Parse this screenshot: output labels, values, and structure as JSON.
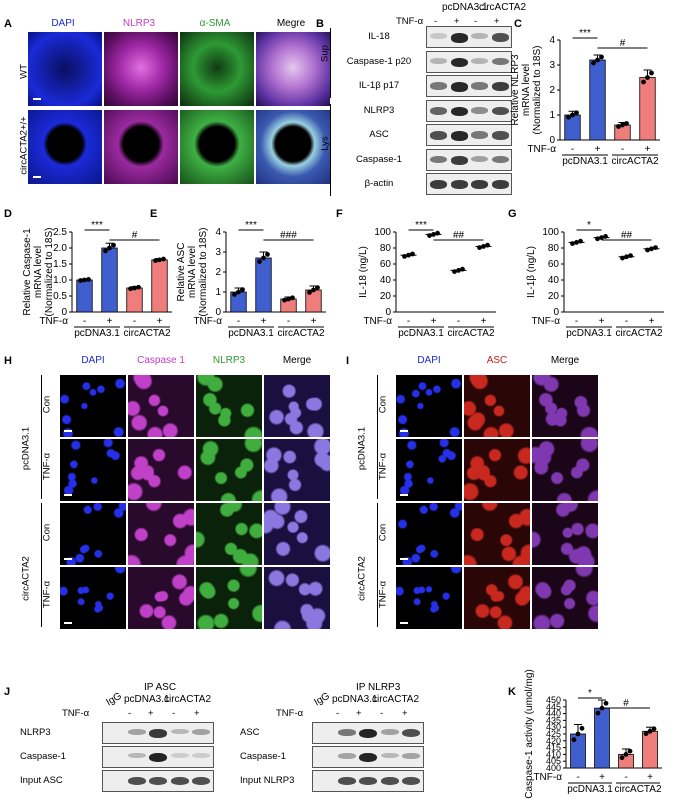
{
  "panels": {
    "A": {
      "label": "A",
      "headers": [
        "DAPI",
        "NLRP3",
        "α-SMA",
        "Megre"
      ],
      "rows": [
        "WT",
        "circACTA2+/+"
      ]
    },
    "B": {
      "label": "B",
      "groups": [
        "pcDNA3.1",
        "circACTA2"
      ],
      "treatment": "TNF-α",
      "signs": [
        "-",
        "+",
        "-",
        "+"
      ],
      "sup_label": "Sup",
      "lys_label": "Lys",
      "rows": [
        "IL-18",
        "Caspase-1 p20",
        "IL-1β p17",
        "NLRP3",
        "ASC",
        "Caspase-1",
        "β-actin"
      ]
    },
    "H": {
      "label": "H",
      "headers": [
        "DAPI",
        "Caspase 1",
        "NLRP3",
        "Merge"
      ],
      "groups": [
        "pcDNA3.1",
        "circACTA2"
      ],
      "rows": [
        "Con",
        "TNF-α"
      ]
    },
    "I": {
      "label": "I",
      "headers": [
        "DAPI",
        "ASC",
        "Merge"
      ],
      "groups": [
        "pcDNA3.1",
        "circACTA2"
      ],
      "rows": [
        "Con",
        "TNF-α"
      ]
    },
    "J": {
      "label": "J",
      "left": {
        "ip": "IP ASC",
        "igg": "IgG",
        "groups": [
          "pcDNA3.1",
          "circACTA2"
        ],
        "treatment": "TNF-α",
        "signs": [
          "-",
          "+",
          "-",
          "+"
        ],
        "rows": [
          "NLRP3",
          "Caspase-1",
          "Input ASC"
        ]
      },
      "right": {
        "ip": "IP NLRP3",
        "igg": "IgG",
        "groups": [
          "pcDNA3.1",
          "circACTA2"
        ],
        "treatment": "TNF-α",
        "signs": [
          "-",
          "+",
          "-",
          "+"
        ],
        "rows": [
          "ASC",
          "Caspase-1",
          "Input NLRP3"
        ]
      }
    }
  },
  "chart_data": [
    {
      "panel": "C",
      "type": "bar",
      "ylabel": "Relative NLRP3 mRNA level (Normalized to 18S)",
      "ylim": [
        0,
        4
      ],
      "yticks": [
        "0",
        "1",
        "2",
        "3",
        "4"
      ],
      "groups": [
        "pcDNA3.1",
        "circACTA2"
      ],
      "treatment": "TNF-α",
      "signs": [
        "-",
        "+",
        "-",
        "+"
      ],
      "values": [
        1.0,
        3.2,
        0.6,
        2.5
      ],
      "errors": [
        0.15,
        0.2,
        0.1,
        0.3
      ],
      "colors": [
        "#3f5fcf",
        "#3f5fcf",
        "#ef7d7b",
        "#ef7d7b"
      ],
      "sig": [
        {
          "from": 0,
          "to": 1,
          "text": "***"
        },
        {
          "from": 1,
          "to": 3,
          "text": "#"
        }
      ]
    },
    {
      "panel": "D",
      "type": "bar",
      "ylabel": "Relative Caspase-1 mRNA level (Normalized to 18S)",
      "ylim": [
        0,
        2.5
      ],
      "yticks": [
        "0",
        "0.5",
        "1.0",
        "1.5",
        "2.0",
        "2.5"
      ],
      "groups": [
        "pcDNA3.1",
        "circACTA2"
      ],
      "treatment": "TNF-α",
      "signs": [
        "-",
        "+",
        "-",
        "+"
      ],
      "values": [
        1.0,
        2.0,
        0.75,
        1.63
      ],
      "errors": [
        0.03,
        0.15,
        0.04,
        0.04
      ],
      "colors": [
        "#3f5fcf",
        "#3f5fcf",
        "#ef7d7b",
        "#ef7d7b"
      ],
      "sig": [
        {
          "from": 0,
          "to": 1,
          "text": "***"
        },
        {
          "from": 1,
          "to": 3,
          "text": "#"
        }
      ]
    },
    {
      "panel": "E",
      "type": "bar",
      "ylabel": "Relative ASC mRNA level (Normalized to 18S)",
      "ylim": [
        0,
        4
      ],
      "yticks": [
        "0",
        "1",
        "2",
        "3",
        "4"
      ],
      "groups": [
        "pcDNA3.1",
        "circACTA2"
      ],
      "treatment": "TNF-α",
      "signs": [
        "-",
        "+",
        "-",
        "+"
      ],
      "values": [
        1.0,
        2.7,
        0.65,
        1.1
      ],
      "errors": [
        0.2,
        0.3,
        0.1,
        0.2
      ],
      "colors": [
        "#3f5fcf",
        "#3f5fcf",
        "#ef7d7b",
        "#ef7d7b"
      ],
      "sig": [
        {
          "from": 0,
          "to": 1,
          "text": "***"
        },
        {
          "from": 1,
          "to": 3,
          "text": "###"
        }
      ]
    },
    {
      "panel": "F",
      "type": "scatter",
      "ylabel": "IL-18 (ng/L)",
      "ylim": [
        0,
        100
      ],
      "yticks": [
        "0",
        "20",
        "40",
        "60",
        "80",
        "100"
      ],
      "groups": [
        "pcDNA3.1",
        "circACTA2"
      ],
      "treatment": "TNF-α",
      "signs": [
        "-",
        "+",
        "-",
        "+"
      ],
      "values": [
        71,
        97,
        52,
        82
      ],
      "colors": [
        "#000",
        "#000",
        "#000",
        "#000"
      ],
      "sig": [
        {
          "from": 0,
          "to": 1,
          "text": "***"
        },
        {
          "from": 1,
          "to": 3,
          "text": "##"
        }
      ]
    },
    {
      "panel": "G",
      "type": "scatter",
      "ylabel": "IL-1β (ng/L)",
      "ylim": [
        0,
        100
      ],
      "yticks": [
        "0",
        "20",
        "40",
        "60",
        "80",
        "100"
      ],
      "groups": [
        "pcDNA3.1",
        "circACTA2"
      ],
      "treatment": "TNF-α",
      "signs": [
        "-",
        "+",
        "-",
        "+"
      ],
      "values": [
        87,
        93,
        69,
        79
      ],
      "colors": [
        "#000",
        "#000",
        "#000",
        "#000"
      ],
      "sig": [
        {
          "from": 0,
          "to": 1,
          "text": "*"
        },
        {
          "from": 1,
          "to": 3,
          "text": "##"
        }
      ]
    },
    {
      "panel": "K",
      "type": "bar",
      "ylabel": "Caspase-1 activity (umol/mg)",
      "ylim": [
        400,
        450
      ],
      "yticks": [
        "400",
        "405",
        "410",
        "415",
        "420",
        "425",
        "430",
        "435",
        "440",
        "445",
        "450"
      ],
      "groups": [
        "pcDNA3.1",
        "circACTA2"
      ],
      "treatment": "TNF-α",
      "signs": [
        "-",
        "+",
        "-",
        "+"
      ],
      "values": [
        425,
        444,
        410,
        427
      ],
      "errors": [
        7,
        6,
        4,
        3
      ],
      "colors": [
        "#3f5fcf",
        "#3f5fcf",
        "#ef7d7b",
        "#ef7d7b"
      ],
      "sig": [
        {
          "from": 0,
          "to": 1,
          "text": "*"
        },
        {
          "from": 1,
          "to": 3,
          "text": "#"
        }
      ]
    }
  ],
  "colors": {
    "blue_bar": "#3f5fcf",
    "red_bar": "#ef7d7b",
    "dapi": "#1a2ad8",
    "magenta": "#c43cc6",
    "green": "#2e9a34",
    "red": "#c0201c"
  }
}
